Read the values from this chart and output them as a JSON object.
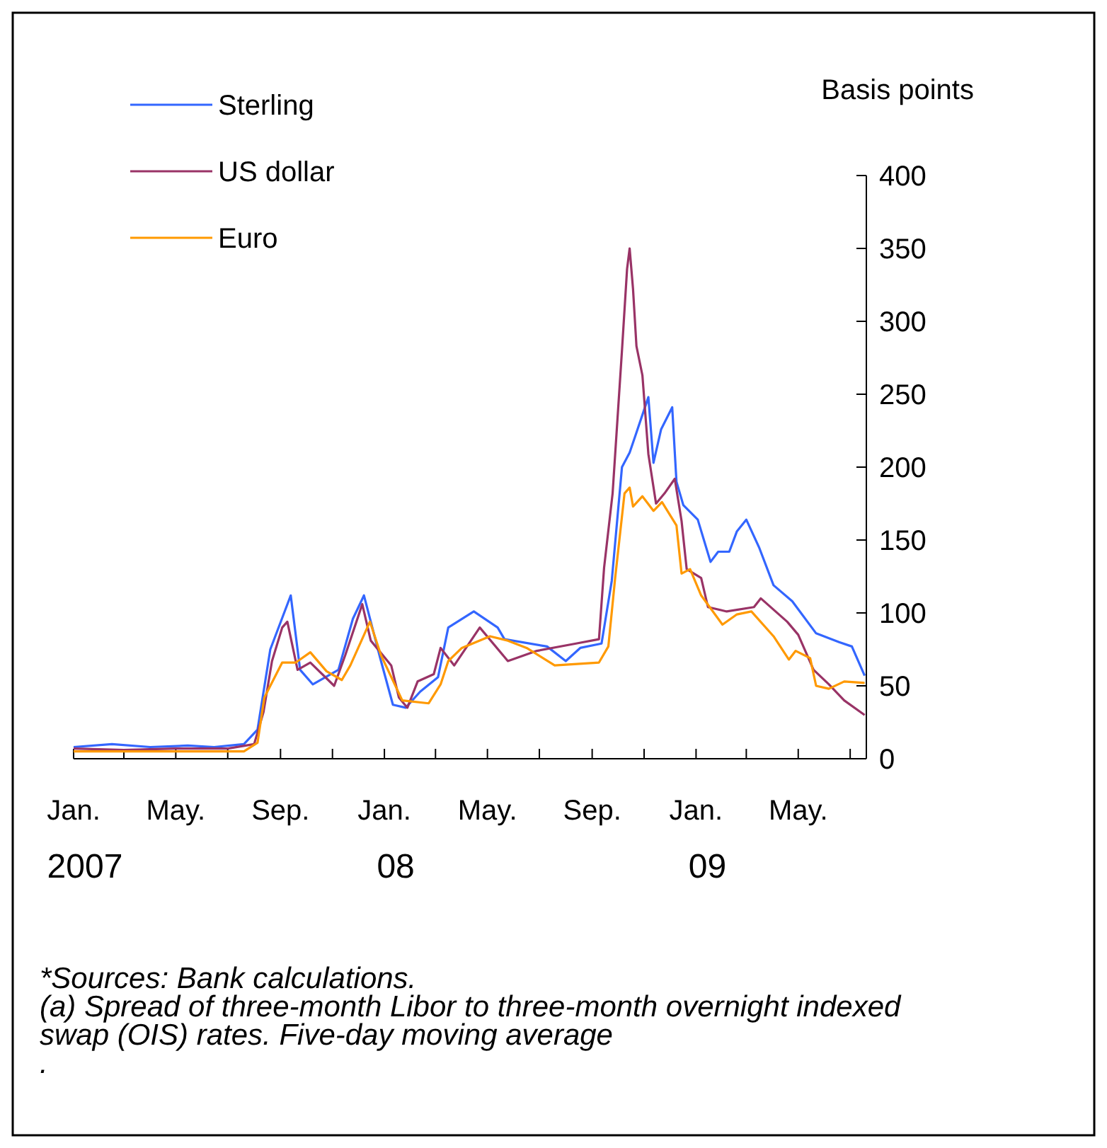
{
  "chart_data": {
    "type": "line",
    "ylabel": "Basis points",
    "legend": "top left",
    "xlim": [
      "2007-01-01",
      "2009-07-20"
    ],
    "xticks": [
      {
        "value": "2007-01-01",
        "label": "Jan.\n2007"
      },
      {
        "value": "2007-03-01",
        "label": null
      },
      {
        "value": "2007-05-01",
        "label": "May."
      },
      {
        "value": "2007-07-01",
        "label": null
      },
      {
        "value": "2007-09-01",
        "label": "Sep."
      },
      {
        "value": "2007-11-01",
        "label": null
      },
      {
        "value": "2008-01-01",
        "label": "Jan.\n08"
      },
      {
        "value": "2008-03-01",
        "label": null
      },
      {
        "value": "2008-05-01",
        "label": "May."
      },
      {
        "value": "2008-07-01",
        "label": null
      },
      {
        "value": "2008-09-01",
        "label": "Sep."
      },
      {
        "value": "2008-11-01",
        "label": null
      },
      {
        "value": "2009-01-01",
        "label": "Jan.\n09"
      },
      {
        "value": "2009-03-01",
        "label": null
      },
      {
        "value": "2009-05-01",
        "label": "May."
      },
      {
        "value": "2009-07-01",
        "label": null
      }
    ],
    "ylim": [
      0,
      400
    ],
    "yticks": [
      0,
      50,
      100,
      150,
      200,
      250,
      300,
      350,
      400
    ],
    "series": [
      {
        "name": "Sterling",
        "color": "#3366ff",
        "x": [
          "2007-01-01",
          "2007-02-15",
          "2007-04-01",
          "2007-05-15",
          "2007-06-15",
          "2007-07-20",
          "2007-08-05",
          "2007-08-20",
          "2007-09-13",
          "2007-09-24",
          "2007-10-09",
          "2007-11-08",
          "2007-11-25",
          "2007-12-08",
          "2007-12-28",
          "2008-01-11",
          "2008-01-26",
          "2008-02-12",
          "2008-03-04",
          "2008-03-16",
          "2008-04-15",
          "2008-05-13",
          "2008-05-21",
          "2008-07-10",
          "2008-08-01",
          "2008-08-18",
          "2008-09-12",
          "2008-09-24",
          "2008-10-06",
          "2008-10-15",
          "2008-10-22",
          "2008-11-06",
          "2008-11-12",
          "2008-11-21",
          "2008-12-04",
          "2008-12-09",
          "2008-12-17",
          "2009-01-03",
          "2009-01-18",
          "2009-01-27",
          "2009-02-09",
          "2009-02-18",
          "2009-03-01",
          "2009-03-16",
          "2009-04-02",
          "2009-04-24",
          "2009-05-22",
          "2009-06-18",
          "2009-07-03",
          "2009-07-18"
        ],
        "values": [
          8,
          10,
          8,
          9,
          8,
          10,
          20,
          75,
          112,
          61,
          51,
          61,
          96,
          112,
          67,
          37,
          35,
          46,
          56,
          90,
          101,
          90,
          82,
          77,
          67,
          76,
          79,
          122,
          200,
          210,
          222,
          248,
          203,
          226,
          241,
          190,
          174,
          164,
          135,
          142,
          142,
          156,
          164,
          145,
          119,
          108,
          86,
          80,
          77,
          57
        ]
      },
      {
        "name": "US dollar",
        "color": "#993366",
        "x": [
          "2007-01-01",
          "2007-03-01",
          "2007-05-01",
          "2007-07-01",
          "2007-08-01",
          "2007-08-12",
          "2007-08-22",
          "2007-09-03",
          "2007-09-09",
          "2007-09-21",
          "2007-10-06",
          "2007-11-03",
          "2007-11-16",
          "2007-12-06",
          "2007-12-16",
          "2008-01-09",
          "2008-01-18",
          "2008-01-28",
          "2008-02-09",
          "2008-02-28",
          "2008-03-07",
          "2008-03-23",
          "2008-04-22",
          "2008-05-25",
          "2008-06-28",
          "2008-08-13",
          "2008-09-09",
          "2008-09-15",
          "2008-09-25",
          "2008-10-06",
          "2008-10-12",
          "2008-10-15",
          "2008-10-19",
          "2008-10-23",
          "2008-10-30",
          "2008-11-06",
          "2008-11-15",
          "2008-11-25",
          "2008-12-07",
          "2008-12-15",
          "2008-12-21",
          "2009-01-07",
          "2009-01-15",
          "2009-02-06",
          "2009-03-10",
          "2009-03-18",
          "2009-04-18",
          "2009-05-01",
          "2009-05-19",
          "2009-06-06",
          "2009-06-24",
          "2009-07-18"
        ],
        "values": [
          7,
          6,
          7,
          7,
          10,
          32,
          67,
          90,
          94,
          61,
          66,
          50,
          71,
          106,
          81,
          64,
          42,
          35,
          53,
          58,
          76,
          64,
          90,
          67,
          74,
          79,
          82,
          131,
          182,
          280,
          336,
          350,
          322,
          283,
          263,
          209,
          175,
          182,
          192,
          163,
          130,
          124,
          104,
          101,
          104,
          110,
          94,
          85,
          61,
          51,
          40,
          30
        ]
      },
      {
        "name": "Euro",
        "color": "#ff9900",
        "x": [
          "2007-01-01",
          "2007-04-01",
          "2007-07-20",
          "2007-08-05",
          "2007-08-13",
          "2007-09-03",
          "2007-09-19",
          "2007-10-06",
          "2007-10-25",
          "2007-11-12",
          "2007-11-22",
          "2007-12-15",
          "2007-12-28",
          "2008-01-22",
          "2008-02-22",
          "2008-03-07",
          "2008-03-16",
          "2008-04-01",
          "2008-05-04",
          "2008-05-25",
          "2008-06-16",
          "2008-07-19",
          "2008-09-09",
          "2008-09-20",
          "2008-09-28",
          "2008-10-09",
          "2008-10-15",
          "2008-10-19",
          "2008-10-30",
          "2008-11-12",
          "2008-11-22",
          "2008-12-09",
          "2008-12-15",
          "2008-12-25",
          "2009-01-07",
          "2009-02-01",
          "2009-02-18",
          "2009-03-07",
          "2009-04-02",
          "2009-04-20",
          "2009-04-28",
          "2009-05-15",
          "2009-05-22",
          "2009-06-06",
          "2009-06-24",
          "2009-07-18"
        ],
        "values": [
          5,
          5,
          5,
          11,
          42,
          66,
          66,
          73,
          60,
          54,
          64,
          94,
          71,
          40,
          38,
          51,
          67,
          76,
          84,
          81,
          76,
          64,
          66,
          77,
          124,
          182,
          186,
          173,
          180,
          170,
          176,
          160,
          127,
          130,
          112,
          92,
          99,
          101,
          84,
          68,
          74,
          69,
          50,
          48,
          53,
          52
        ]
      }
    ],
    "annotations": [
      "*Sources: Bank calculations.",
      "(a) Spread of three-month Libor to three-month overnight indexed swap (OIS) rates. Five-day moving average",
      "."
    ]
  }
}
